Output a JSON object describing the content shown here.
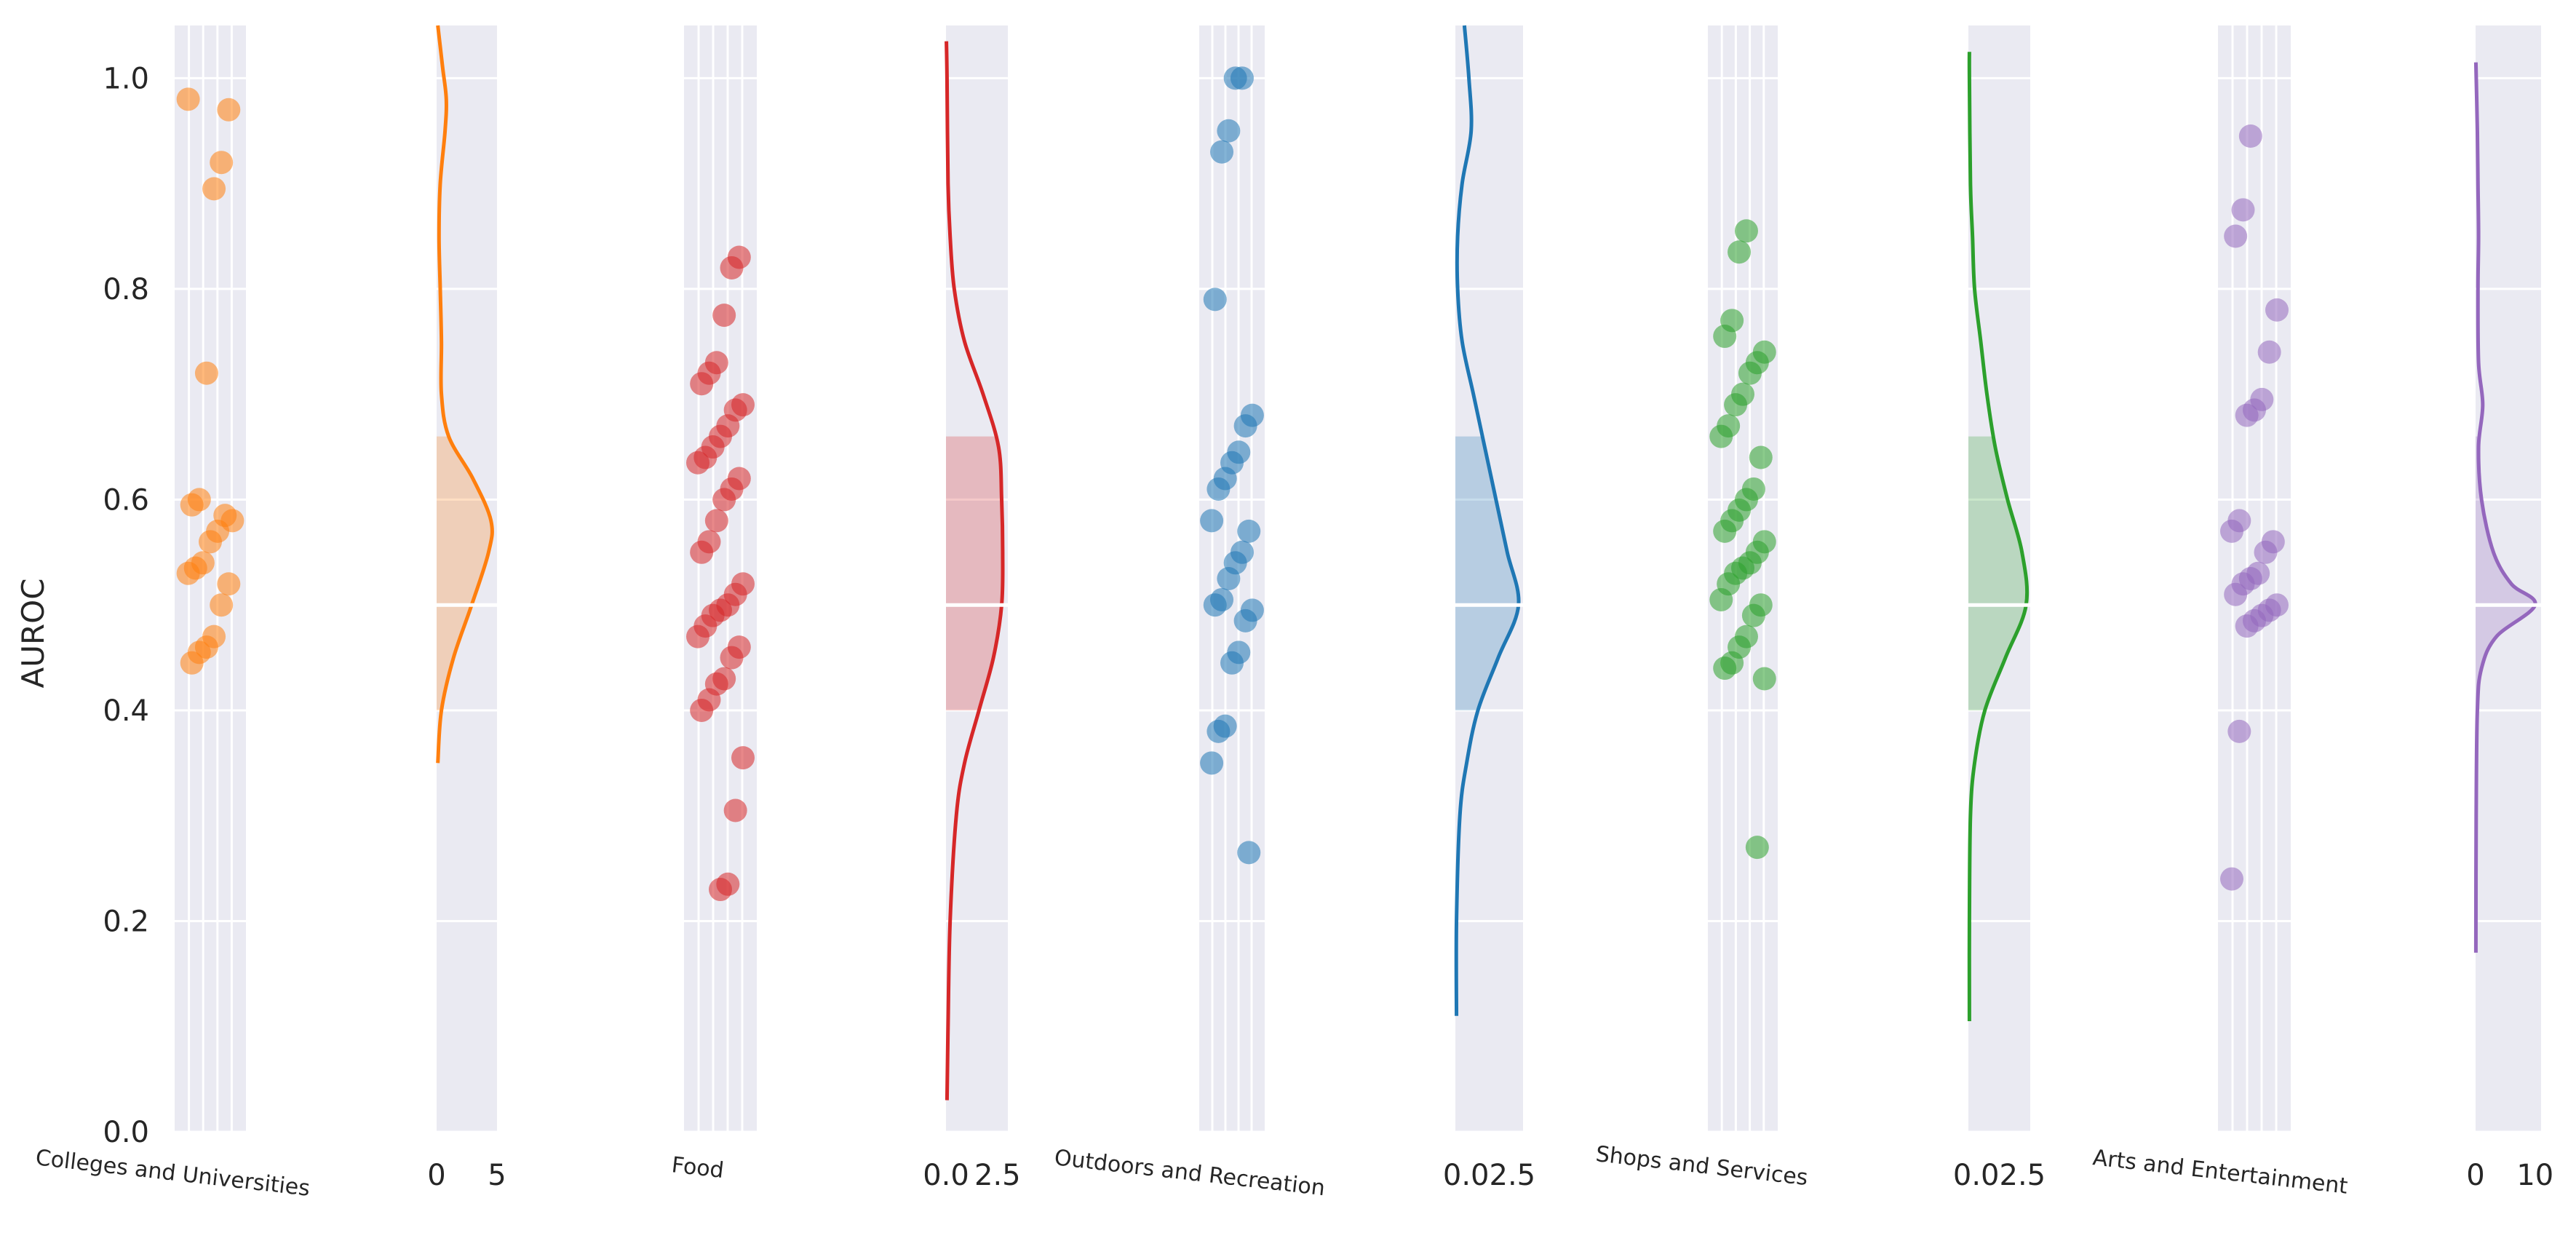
{
  "chart_data": {
    "type": "scatter",
    "title": "",
    "ylabel": "AUROC",
    "ylim": [
      0,
      1.05
    ],
    "y_ticks": [
      "0.0",
      "0.2",
      "0.4",
      "0.6",
      "0.8",
      "1.0"
    ],
    "grid": true,
    "panels": [
      {
        "name": "Colleges and Universities",
        "color": "#ff7f0e",
        "values": [
          0.98,
          0.97,
          0.92,
          0.895,
          0.72,
          0.6,
          0.595,
          0.58,
          0.585,
          0.57,
          0.56,
          0.54,
          0.535,
          0.53,
          0.52,
          0.5,
          0.47,
          0.46,
          0.455,
          0.445
        ],
        "density_ticks": [
          "0",
          "5"
        ],
        "density_max": 5,
        "density_range": [
          0.35,
          1.05
        ],
        "density": [
          [
            0.35,
            0.1
          ],
          [
            0.4,
            0.4
          ],
          [
            0.45,
            1.4
          ],
          [
            0.5,
            2.9
          ],
          [
            0.55,
            4.3
          ],
          [
            0.58,
            4.5
          ],
          [
            0.62,
            3.0
          ],
          [
            0.66,
            1.0
          ],
          [
            0.7,
            0.4
          ],
          [
            0.75,
            0.4
          ],
          [
            0.8,
            0.3
          ],
          [
            0.85,
            0.2
          ],
          [
            0.9,
            0.3
          ],
          [
            0.95,
            0.7
          ],
          [
            0.98,
            0.8
          ],
          [
            1.01,
            0.5
          ],
          [
            1.05,
            0.1
          ]
        ]
      },
      {
        "name": "Food",
        "color": "#d62728",
        "values": [
          0.83,
          0.82,
          0.775,
          0.73,
          0.72,
          0.71,
          0.69,
          0.685,
          0.67,
          0.66,
          0.65,
          0.64,
          0.635,
          0.62,
          0.61,
          0.6,
          0.58,
          0.56,
          0.55,
          0.52,
          0.51,
          0.5,
          0.495,
          0.49,
          0.48,
          0.47,
          0.46,
          0.45,
          0.43,
          0.425,
          0.41,
          0.4,
          0.355,
          0.305,
          0.235,
          0.23
        ],
        "density_ticks": [
          "0.0",
          "2.5"
        ],
        "density_max": 3.0,
        "density_range": [
          0.03,
          1.035
        ],
        "density": [
          [
            0.03,
            0.05
          ],
          [
            0.1,
            0.1
          ],
          [
            0.2,
            0.2
          ],
          [
            0.3,
            0.5
          ],
          [
            0.35,
            0.9
          ],
          [
            0.4,
            1.6
          ],
          [
            0.45,
            2.3
          ],
          [
            0.5,
            2.7
          ],
          [
            0.55,
            2.75
          ],
          [
            0.6,
            2.7
          ],
          [
            0.65,
            2.55
          ],
          [
            0.7,
            1.8
          ],
          [
            0.75,
            0.9
          ],
          [
            0.8,
            0.4
          ],
          [
            0.85,
            0.2
          ],
          [
            0.9,
            0.1
          ],
          [
            1.0,
            0.05
          ],
          [
            1.035,
            0.02
          ]
        ]
      },
      {
        "name": "Outdoors and Recreation",
        "color": "#1f77b4",
        "values": [
          1.0,
          1.0,
          0.95,
          0.93,
          0.79,
          0.68,
          0.67,
          0.645,
          0.635,
          0.62,
          0.61,
          0.58,
          0.57,
          0.55,
          0.54,
          0.525,
          0.505,
          0.5,
          0.495,
          0.485,
          0.455,
          0.445,
          0.385,
          0.38,
          0.35,
          0.265
        ],
        "density_ticks": [
          "0.02.5"
        ],
        "density_max": 3.0,
        "density_range": [
          0.11,
          1.05
        ],
        "density": [
          [
            0.11,
            0.05
          ],
          [
            0.2,
            0.05
          ],
          [
            0.3,
            0.2
          ],
          [
            0.35,
            0.5
          ],
          [
            0.4,
            1.0
          ],
          [
            0.45,
            1.9
          ],
          [
            0.5,
            2.8
          ],
          [
            0.55,
            2.3
          ],
          [
            0.6,
            1.8
          ],
          [
            0.65,
            1.3
          ],
          [
            0.7,
            0.8
          ],
          [
            0.75,
            0.3
          ],
          [
            0.8,
            0.1
          ],
          [
            0.85,
            0.1
          ],
          [
            0.9,
            0.3
          ],
          [
            0.95,
            0.7
          ],
          [
            1.0,
            0.6
          ],
          [
            1.05,
            0.4
          ]
        ]
      },
      {
        "name": "Shops and Services",
        "color": "#2ca02c",
        "values": [
          0.855,
          0.835,
          0.77,
          0.755,
          0.74,
          0.73,
          0.72,
          0.7,
          0.69,
          0.67,
          0.66,
          0.64,
          0.61,
          0.6,
          0.59,
          0.58,
          0.57,
          0.56,
          0.55,
          0.54,
          0.535,
          0.53,
          0.52,
          0.505,
          0.5,
          0.49,
          0.47,
          0.46,
          0.445,
          0.44,
          0.43,
          0.27
        ],
        "density_ticks": [
          "0.02.5"
        ],
        "density_max": 3.0,
        "density_range": [
          0.105,
          1.025
        ],
        "density": [
          [
            0.105,
            0.05
          ],
          [
            0.2,
            0.05
          ],
          [
            0.3,
            0.1
          ],
          [
            0.35,
            0.3
          ],
          [
            0.4,
            0.8
          ],
          [
            0.45,
            1.8
          ],
          [
            0.5,
            2.8
          ],
          [
            0.55,
            2.6
          ],
          [
            0.6,
            1.9
          ],
          [
            0.65,
            1.3
          ],
          [
            0.7,
            0.9
          ],
          [
            0.75,
            0.6
          ],
          [
            0.8,
            0.3
          ],
          [
            0.85,
            0.2
          ],
          [
            0.9,
            0.1
          ],
          [
            1.0,
            0.05
          ],
          [
            1.025,
            0.05
          ]
        ]
      },
      {
        "name": "Arts and Entertainment",
        "color": "#9467bd",
        "values": [
          0.945,
          0.875,
          0.85,
          0.78,
          0.74,
          0.695,
          0.685,
          0.68,
          0.58,
          0.57,
          0.56,
          0.55,
          0.53,
          0.525,
          0.52,
          0.51,
          0.5,
          0.495,
          0.49,
          0.485,
          0.48,
          0.38,
          0.24
        ],
        "density_ticks": [
          "0",
          "10"
        ],
        "density_max": 11,
        "density_range": [
          0.17,
          1.015
        ],
        "density": [
          [
            0.17,
            0.05
          ],
          [
            0.3,
            0.1
          ],
          [
            0.4,
            0.3
          ],
          [
            0.44,
            1.0
          ],
          [
            0.47,
            3.5
          ],
          [
            0.5,
            10.0
          ],
          [
            0.52,
            6.0
          ],
          [
            0.55,
            3.0
          ],
          [
            0.6,
            1.0
          ],
          [
            0.65,
            0.5
          ],
          [
            0.69,
            1.2
          ],
          [
            0.73,
            0.5
          ],
          [
            0.8,
            0.4
          ],
          [
            0.85,
            0.5
          ],
          [
            0.9,
            0.4
          ],
          [
            0.95,
            0.3
          ],
          [
            1.015,
            0.05
          ]
        ]
      }
    ]
  }
}
